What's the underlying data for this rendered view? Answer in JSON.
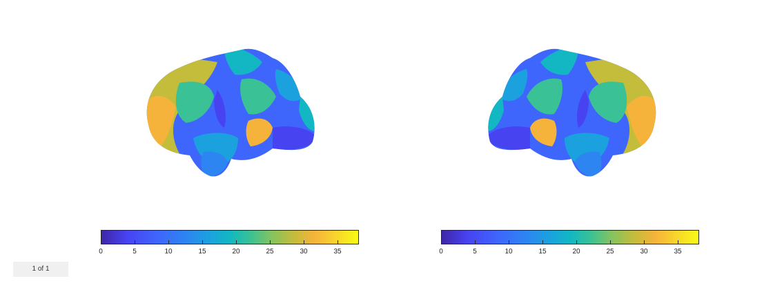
{
  "colorbar": {
    "ticks": [
      "0",
      "5",
      "10",
      "15",
      "20",
      "25",
      "30",
      "35"
    ],
    "range": [
      0,
      38
    ],
    "colormap": [
      "#3e26a8",
      "#4743f1",
      "#3f66fc",
      "#2d85f1",
      "#1ba2de",
      "#12b7c3",
      "#3ac195",
      "#83c361",
      "#c4bc3b",
      "#f5b33b",
      "#f8d82b",
      "#f9fb15"
    ]
  },
  "pager": {
    "label": "1 of 1"
  }
}
